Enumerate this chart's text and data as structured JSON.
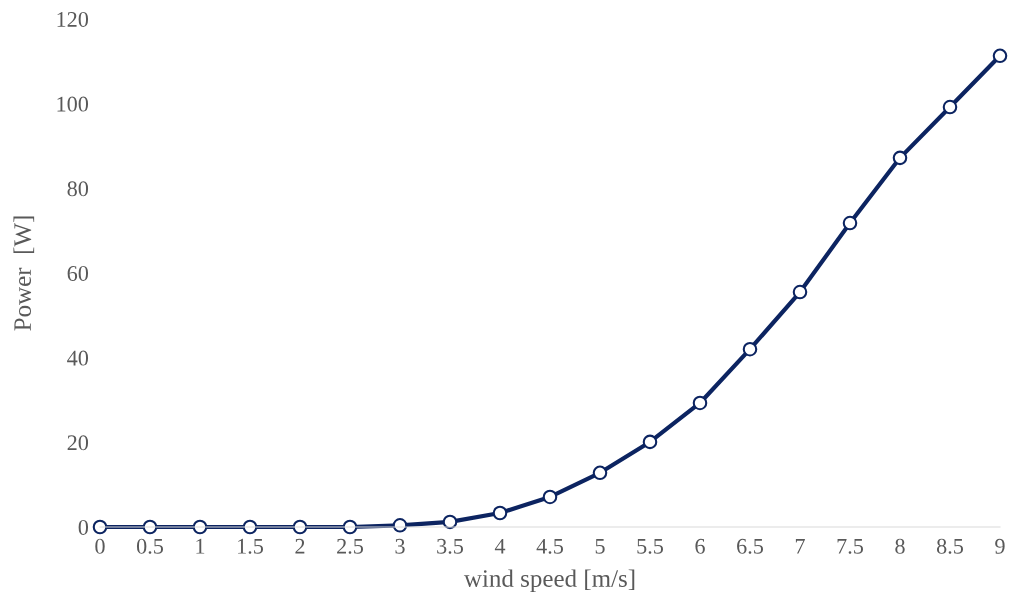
{
  "chart_data": {
    "type": "line",
    "xlabel": "wind speed [m/s]",
    "ylabel": "Power  [W]",
    "categories": [
      "0",
      "0.5",
      "1",
      "1.5",
      "2",
      "2.5",
      "3",
      "3.5",
      "4",
      "4.5",
      "5",
      "5.5",
      "6",
      "6.5",
      "7",
      "7.5",
      "8",
      "8.5",
      "9"
    ],
    "series": [
      {
        "color": "#0c2461",
        "values": [
          0,
          0,
          0,
          0,
          0,
          0,
          0.4,
          1.2,
          3.3,
          7.1,
          12.8,
          20.1,
          29.3,
          42.0,
          55.5,
          71.8,
          87.2,
          99.2,
          111.3
        ]
      }
    ],
    "ylim": [
      0,
      120
    ],
    "yticks": [
      0,
      20,
      40,
      60,
      80,
      100,
      120
    ],
    "marker": "circle",
    "line_style": "solid"
  }
}
